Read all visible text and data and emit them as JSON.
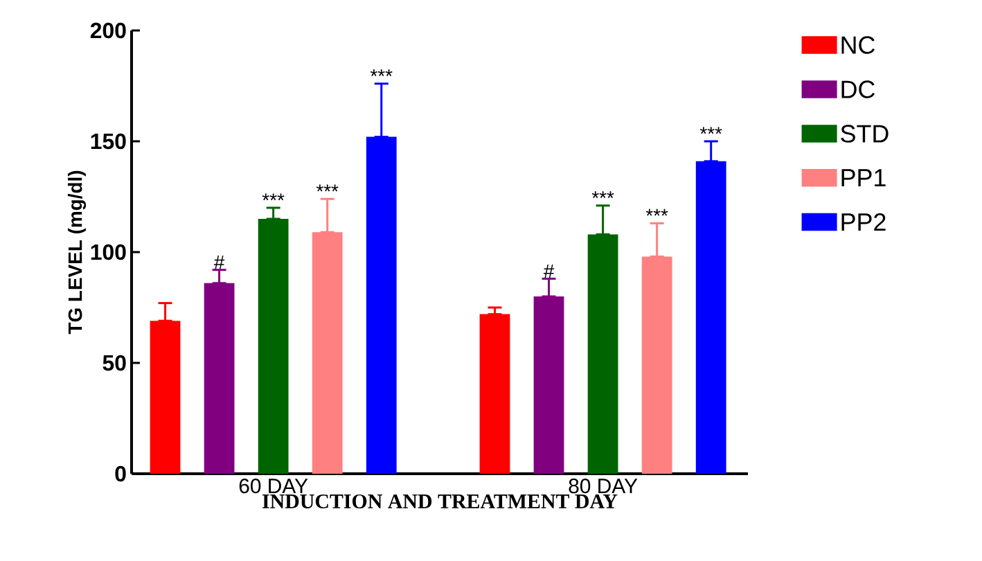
{
  "chart_data": {
    "type": "bar",
    "xlabel": "INDUCTION AND TREATMENT DAY",
    "ylabel": "TG LEVEL (mg/dl)",
    "categories": [
      "60 DAY",
      "80 DAY"
    ],
    "ylim": [
      0,
      200
    ],
    "yticks": [
      0,
      50,
      100,
      150,
      200
    ],
    "legend": "right",
    "series": [
      {
        "name": "NC",
        "color": "#ff0000",
        "values": [
          69,
          72
        ],
        "errors": [
          [
            69,
            77
          ],
          [
            72,
            75
          ]
        ]
      },
      {
        "name": "DC",
        "color": "#800080",
        "values": [
          86,
          80
        ],
        "errors": [
          [
            86,
            92
          ],
          [
            80,
            88
          ]
        ],
        "value_labels": [
          "#",
          "#"
        ]
      },
      {
        "name": "STD",
        "color": "#006400",
        "values": [
          115,
          108
        ],
        "errors": [
          [
            115,
            120
          ],
          [
            108,
            121
          ]
        ],
        "value_labels": [
          "***",
          "***"
        ]
      },
      {
        "name": "PP1",
        "color": "#ff8080",
        "values": [
          109,
          98
        ],
        "errors": [
          [
            109,
            124
          ],
          [
            98,
            113
          ]
        ],
        "value_labels": [
          "***",
          "***"
        ]
      },
      {
        "name": "PP2",
        "color": "#0000ff",
        "values": [
          152,
          141
        ],
        "errors": [
          [
            152,
            176
          ],
          [
            141,
            150
          ]
        ],
        "value_labels": [
          "***",
          "***"
        ]
      }
    ]
  }
}
